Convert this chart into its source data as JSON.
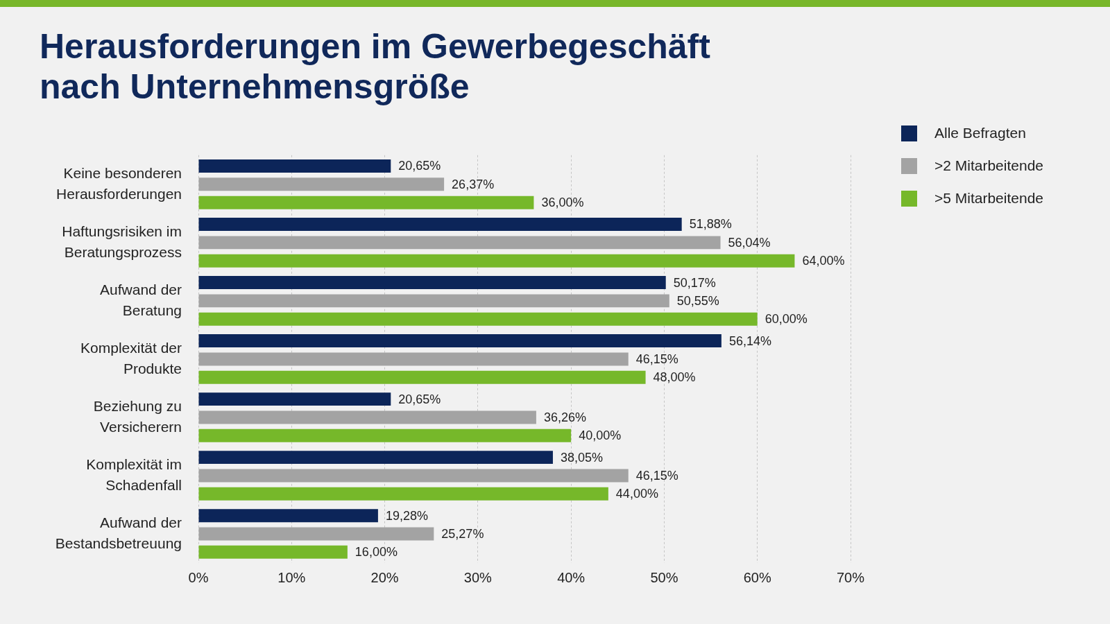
{
  "chart_data": {
    "type": "bar",
    "orientation": "horizontal",
    "title": "Herausforderungen im Gewerbegeschäft nach Unternehmensgröße",
    "categories": [
      "Keine besonderen Herausforderungen",
      "Haftungsrisiken im Beratungsprozess",
      "Aufwand der Beratung",
      "Komplexität der Produkte",
      "Beziehung zu Versicherern",
      "Komplexität im Schadenfall",
      "Aufwand der Bestandsbetreuung"
    ],
    "series": [
      {
        "name": "Alle Befragten",
        "color": "#0c2559",
        "values": [
          20.65,
          51.88,
          50.17,
          56.14,
          20.65,
          38.05,
          19.28
        ],
        "value_labels": [
          "20,65%",
          "51,88%",
          "50,17%",
          "56,14%",
          "20,65%",
          "38,05%",
          "19,28%"
        ]
      },
      {
        "name": ">2 Mitarbeitende",
        "color": "#a3a3a3",
        "values": [
          26.37,
          56.04,
          50.55,
          46.15,
          36.26,
          46.15,
          25.27
        ],
        "value_labels": [
          "26,37%",
          "56,04%",
          "50,55%",
          "46,15%",
          "36,26%",
          "46,15%",
          "25,27%"
        ]
      },
      {
        "name": ">5 Mitarbeitende",
        "color": "#76b82a",
        "values": [
          36.0,
          64.0,
          60.0,
          48.0,
          40.0,
          44.0,
          16.0
        ],
        "value_labels": [
          "36,00%",
          "64,00%",
          "60,00%",
          "48,00%",
          "40,00%",
          "44,00%",
          "16,00%"
        ]
      }
    ],
    "xlim": [
      0,
      70
    ],
    "xticks": [
      {
        "value": 0,
        "label": "0%"
      },
      {
        "value": 10,
        "label": "10%"
      },
      {
        "value": 20,
        "label": "20%"
      },
      {
        "value": 30,
        "label": "30%"
      },
      {
        "value": 40,
        "label": "40%"
      },
      {
        "value": 50,
        "label": "50%"
      },
      {
        "value": 60,
        "label": "60%"
      },
      {
        "value": 70,
        "label": "70%"
      }
    ],
    "grid": "x",
    "legend": "top right"
  }
}
